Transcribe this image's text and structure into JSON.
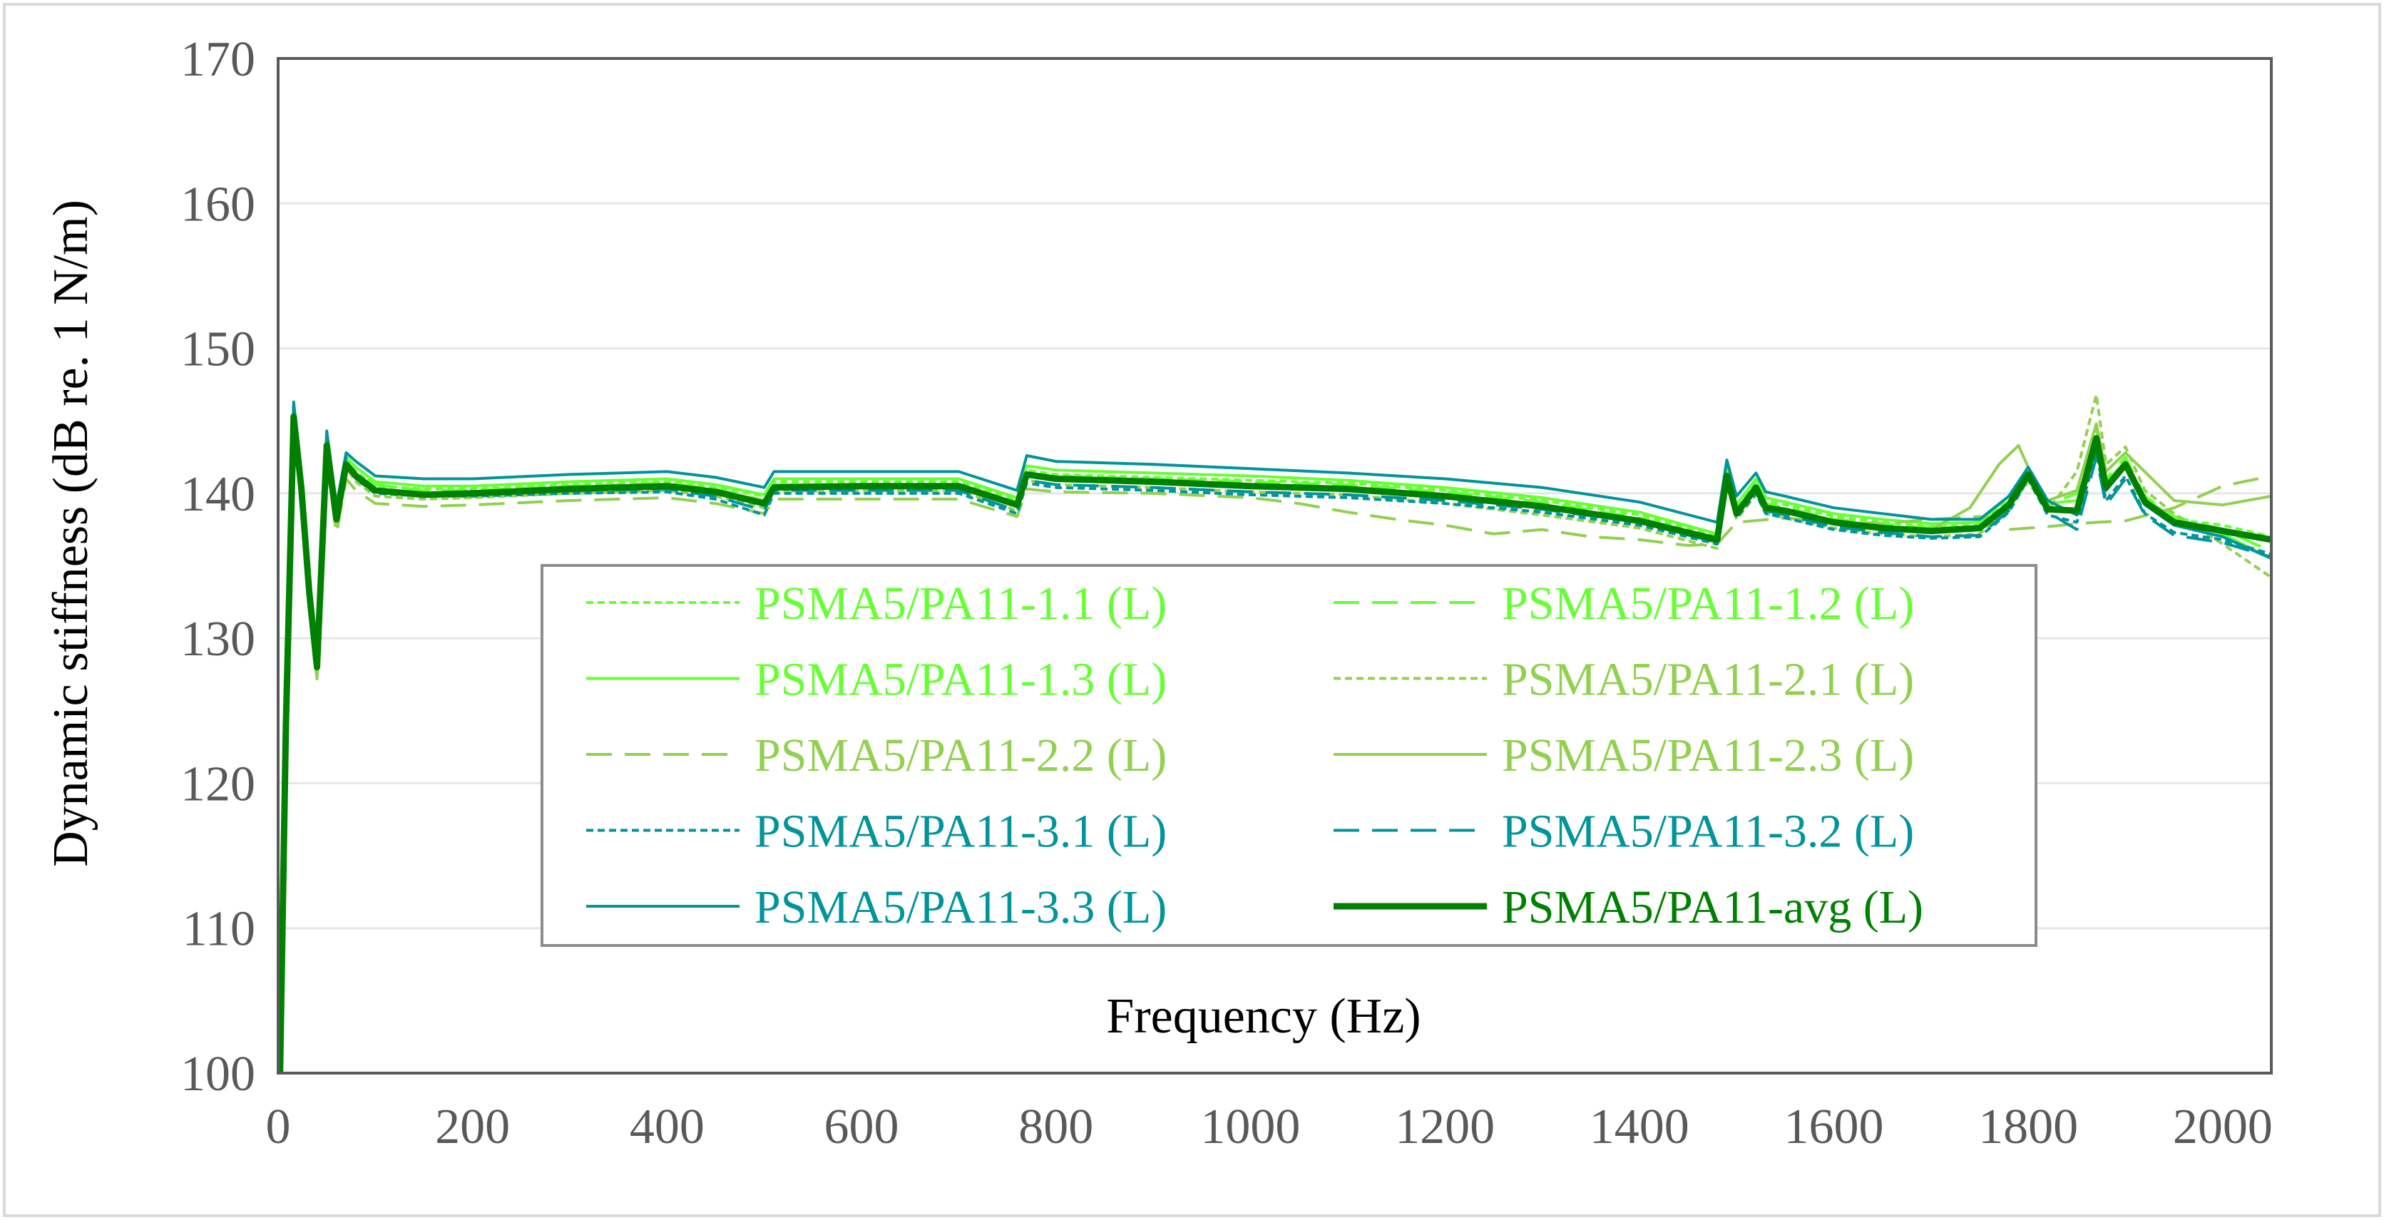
{
  "chart_data": {
    "type": "line",
    "title": "",
    "xlabel": "Frequency (Hz)",
    "ylabel": "Dynamic stiffness  (dB re. 1 N/m)",
    "xlim": [
      0,
      2050
    ],
    "ylim": [
      100,
      170
    ],
    "xticks": [
      0,
      200,
      400,
      600,
      800,
      1000,
      1200,
      1400,
      1600,
      1800,
      2000
    ],
    "yticks": [
      100,
      110,
      120,
      130,
      140,
      150,
      160,
      170
    ],
    "xtick_labels": [
      "0",
      "200",
      "400",
      "600",
      "800",
      "1000",
      "1200",
      "1400",
      "1600",
      "1800",
      "2000"
    ],
    "ytick_labels": [
      "100",
      "110",
      "120",
      "130",
      "140",
      "150",
      "160",
      "170"
    ],
    "grid": "horizontal",
    "legend_position": "center",
    "series": [
      {
        "name": "PSMA5/PA11-1.1 (L)",
        "color": "#66ff33",
        "dash": "short-dash",
        "x": [
          2,
          8,
          16,
          24,
          32,
          40,
          50,
          60,
          70,
          80,
          100,
          150,
          200,
          300,
          400,
          450,
          500,
          510,
          600,
          700,
          760,
          770,
          800,
          900,
          1000,
          1100,
          1200,
          1300,
          1400,
          1480,
          1490,
          1500,
          1520,
          1530,
          1550,
          1600,
          1650,
          1700,
          1750,
          1780,
          1800,
          1820,
          1850,
          1870,
          1880,
          1900,
          1920,
          1950,
          2000,
          2050
        ],
        "y": [
          100,
          124,
          145,
          140,
          133,
          128,
          143,
          138,
          142,
          141.5,
          140.5,
          140.3,
          140.3,
          140.6,
          140.8,
          140.4,
          139.8,
          140.8,
          140.8,
          140.8,
          139.5,
          141.6,
          141.3,
          141.1,
          140.9,
          140.7,
          140.2,
          139.5,
          138.5,
          137,
          141.5,
          139,
          140.8,
          139.5,
          139.2,
          138.4,
          138.0,
          137.7,
          137.8,
          139.5,
          141.2,
          139,
          138.8,
          143,
          140.5,
          142,
          139.5,
          138.2,
          137.8,
          137
        ]
      },
      {
        "name": "PSMA5/PA11-1.2 (L)",
        "color": "#66ff33",
        "dash": "long-dash",
        "x": [
          2,
          8,
          16,
          24,
          32,
          40,
          50,
          60,
          70,
          80,
          100,
          150,
          200,
          300,
          400,
          450,
          500,
          510,
          600,
          700,
          760,
          770,
          800,
          900,
          1000,
          1100,
          1200,
          1300,
          1400,
          1480,
          1490,
          1500,
          1520,
          1530,
          1550,
          1600,
          1650,
          1700,
          1750,
          1780,
          1800,
          1820,
          1850,
          1870,
          1880,
          1900,
          1920,
          1950,
          2000,
          2050
        ],
        "y": [
          100,
          123,
          145.5,
          140.5,
          133.5,
          128,
          143.5,
          138,
          142.2,
          141.5,
          140.6,
          140.2,
          140.2,
          140.5,
          140.7,
          140.3,
          139.5,
          140.6,
          140.6,
          140.6,
          139.4,
          141.4,
          141.2,
          141.0,
          140.8,
          140.6,
          140.1,
          139.4,
          138.3,
          136.8,
          141.4,
          138.8,
          140.6,
          139.3,
          139.0,
          138.2,
          137.9,
          137.6,
          137.7,
          139.2,
          141.0,
          139.2,
          140,
          144.5,
          141,
          142.5,
          139.8,
          138.4,
          137.5,
          136
        ]
      },
      {
        "name": "PSMA5/PA11-1.3 (L)",
        "color": "#66ff33",
        "dash": "solid",
        "x": [
          2,
          8,
          16,
          24,
          32,
          40,
          50,
          60,
          70,
          80,
          100,
          150,
          200,
          300,
          400,
          450,
          500,
          510,
          600,
          700,
          760,
          770,
          800,
          900,
          1000,
          1100,
          1200,
          1300,
          1400,
          1480,
          1490,
          1500,
          1520,
          1530,
          1550,
          1600,
          1650,
          1700,
          1750,
          1780,
          1800,
          1820,
          1850,
          1870,
          1880,
          1900,
          1920,
          1950,
          2000,
          2050
        ],
        "y": [
          100,
          124,
          146,
          140.5,
          133,
          127.8,
          143.8,
          138.2,
          142.5,
          141.8,
          140.8,
          140.5,
          140.5,
          140.8,
          141.0,
          140.6,
          139.9,
          141.0,
          141.0,
          141.0,
          139.7,
          141.9,
          141.6,
          141.4,
          141.2,
          140.9,
          140.4,
          139.7,
          138.7,
          137.2,
          141.8,
          139.2,
          141.0,
          139.7,
          139.4,
          138.6,
          138.2,
          137.9,
          138.0,
          139.8,
          141.5,
          139.3,
          139.5,
          143.5,
          140.8,
          142.2,
          139.6,
          138.3,
          137.2,
          135.5
        ]
      },
      {
        "name": "PSMA5/PA11-2.1 (L)",
        "color": "#92d050",
        "dash": "short-dash",
        "x": [
          2,
          8,
          16,
          24,
          32,
          40,
          50,
          60,
          70,
          80,
          100,
          150,
          200,
          300,
          400,
          450,
          500,
          510,
          600,
          700,
          760,
          770,
          800,
          900,
          1000,
          1100,
          1200,
          1300,
          1400,
          1480,
          1490,
          1500,
          1520,
          1530,
          1550,
          1600,
          1650,
          1700,
          1750,
          1780,
          1800,
          1820,
          1850,
          1870,
          1880,
          1900,
          1920,
          1950,
          2000,
          2050
        ],
        "y": [
          100,
          123,
          145,
          139.8,
          132.5,
          127.5,
          142.8,
          137.8,
          141.8,
          140.8,
          139.8,
          139.6,
          139.7,
          140.0,
          140.2,
          139.8,
          139.0,
          140.2,
          140.2,
          140.2,
          138.8,
          140.9,
          140.6,
          140.4,
          140.1,
          139.9,
          139.3,
          138.5,
          137.6,
          136.2,
          140.7,
          138.2,
          139.9,
          138.6,
          138.3,
          137.6,
          137.2,
          137.0,
          137.2,
          139.0,
          140.8,
          138.8,
          141.5,
          146.8,
          142,
          143.2,
          140.2,
          138.6,
          136.5,
          134.2
        ]
      },
      {
        "name": "PSMA5/PA11-2.2 (L)",
        "color": "#92d050",
        "dash": "long-dash",
        "x": [
          2,
          8,
          16,
          24,
          32,
          40,
          50,
          60,
          70,
          80,
          100,
          150,
          200,
          300,
          400,
          450,
          500,
          510,
          600,
          700,
          760,
          770,
          800,
          900,
          1000,
          1050,
          1100,
          1150,
          1200,
          1250,
          1300,
          1350,
          1400,
          1450,
          1480,
          1500,
          1550,
          1600,
          1650,
          1700,
          1750,
          1780,
          1800,
          1820,
          1850,
          1870,
          1900,
          1950,
          2000,
          2050
        ],
        "y": [
          100,
          122,
          144.5,
          139,
          132,
          127.2,
          142.2,
          137.2,
          141,
          140.2,
          139.3,
          139.1,
          139.2,
          139.5,
          139.7,
          139.3,
          138.6,
          139.6,
          139.6,
          139.6,
          138.4,
          140.3,
          140.1,
          140.0,
          139.7,
          139.3,
          138.7,
          138.2,
          137.8,
          137.2,
          137.5,
          137.0,
          136.8,
          136.4,
          136.5,
          138.0,
          138.3,
          138.0,
          137.9,
          138.2,
          138.4,
          137.5,
          137.6,
          137.7,
          137.9,
          138.0,
          138.1,
          139.0,
          140.5,
          141.2
        ]
      },
      {
        "name": "PSMA5/PA11-2.3 (L)",
        "color": "#92d050",
        "dash": "solid",
        "x": [
          2,
          8,
          16,
          24,
          32,
          40,
          50,
          60,
          70,
          80,
          100,
          150,
          200,
          300,
          400,
          450,
          500,
          510,
          600,
          700,
          760,
          770,
          800,
          900,
          1000,
          1100,
          1200,
          1300,
          1400,
          1480,
          1490,
          1500,
          1520,
          1530,
          1550,
          1600,
          1650,
          1700,
          1740,
          1770,
          1790,
          1800,
          1820,
          1850,
          1870,
          1880,
          1900,
          1950,
          2000,
          2050
        ],
        "y": [
          100,
          123,
          145,
          140,
          133,
          128,
          143,
          138,
          142,
          141.2,
          140.2,
          140.0,
          140.1,
          140.4,
          140.6,
          140.2,
          139.5,
          140.6,
          140.6,
          140.6,
          139.2,
          141.3,
          141.0,
          140.8,
          140.5,
          140.3,
          139.8,
          139.0,
          138.0,
          136.6,
          141.0,
          138.5,
          140.2,
          138.9,
          138.7,
          138.0,
          137.6,
          137.5,
          139.0,
          142.0,
          143.3,
          141.8,
          139.5,
          140.2,
          144.8,
          141.5,
          142.8,
          139.5,
          139.2,
          139.8
        ]
      },
      {
        "name": "PSMA5/PA11-3.1 (L)",
        "color": "#00949b",
        "dash": "short-dash",
        "x": [
          2,
          8,
          16,
          24,
          32,
          40,
          50,
          60,
          70,
          80,
          100,
          150,
          200,
          300,
          400,
          450,
          500,
          510,
          600,
          700,
          760,
          770,
          800,
          900,
          1000,
          1100,
          1200,
          1300,
          1400,
          1480,
          1490,
          1500,
          1520,
          1530,
          1550,
          1600,
          1650,
          1700,
          1750,
          1780,
          1800,
          1820,
          1850,
          1870,
          1880,
          1900,
          1920,
          1950,
          2000,
          2050
        ],
        "y": [
          100,
          124,
          145.5,
          140.2,
          133.5,
          128.5,
          143.5,
          138.5,
          142.2,
          141.0,
          140.0,
          139.8,
          139.8,
          140.0,
          140.1,
          139.6,
          138.5,
          140.0,
          140.0,
          140.0,
          138.6,
          140.7,
          140.4,
          140.2,
          139.9,
          139.7,
          139.3,
          138.7,
          137.8,
          136.5,
          141.0,
          138.3,
          140.0,
          138.6,
          138.3,
          137.5,
          137.1,
          136.9,
          137.0,
          138.7,
          141.0,
          138.5,
          138.0,
          142.8,
          139.5,
          141.2,
          138.6,
          137.3,
          136.8,
          135.8
        ]
      },
      {
        "name": "PSMA5/PA11-3.2 (L)",
        "color": "#00949b",
        "dash": "long-dash",
        "x": [
          2,
          8,
          16,
          24,
          32,
          40,
          50,
          60,
          70,
          80,
          100,
          150,
          200,
          300,
          400,
          450,
          500,
          510,
          600,
          700,
          760,
          770,
          800,
          900,
          1000,
          1100,
          1200,
          1300,
          1400,
          1480,
          1490,
          1500,
          1520,
          1530,
          1550,
          1600,
          1650,
          1700,
          1750,
          1780,
          1800,
          1820,
          1850,
          1870,
          1880,
          1900,
          1920,
          1950,
          2000,
          2050
        ],
        "y": [
          100,
          125,
          146,
          140.8,
          134,
          129,
          144,
          139,
          142.5,
          141.3,
          140.3,
          140.0,
          140.0,
          140.2,
          140.3,
          139.8,
          138.8,
          140.2,
          140.2,
          140.2,
          138.8,
          140.9,
          140.6,
          140.4,
          140.1,
          139.9,
          139.5,
          138.9,
          138.0,
          136.6,
          141.2,
          138.5,
          140.2,
          138.8,
          138.5,
          137.7,
          137.3,
          137.0,
          137.1,
          138.8,
          141.2,
          138.7,
          137.5,
          142.5,
          139.2,
          141.0,
          138.5,
          137.1,
          136.6,
          135.6
        ]
      },
      {
        "name": "PSMA5/PA11-3.3 (L)",
        "color": "#00949b",
        "dash": "solid",
        "x": [
          2,
          8,
          16,
          24,
          32,
          40,
          50,
          60,
          70,
          80,
          100,
          150,
          200,
          300,
          400,
          450,
          500,
          510,
          600,
          700,
          760,
          770,
          800,
          900,
          1000,
          1100,
          1200,
          1300,
          1400,
          1480,
          1490,
          1500,
          1520,
          1530,
          1550,
          1600,
          1650,
          1700,
          1750,
          1780,
          1800,
          1820,
          1850,
          1870,
          1880,
          1900,
          1920,
          1950,
          2000,
          2050
        ],
        "y": [
          100,
          125,
          146.3,
          141,
          134.2,
          129.2,
          144.3,
          139.2,
          142.8,
          142.2,
          141.2,
          141.0,
          141.0,
          141.3,
          141.5,
          141.1,
          140.4,
          141.5,
          141.5,
          141.5,
          140.2,
          142.6,
          142.2,
          142.0,
          141.7,
          141.4,
          141.0,
          140.4,
          139.4,
          138.0,
          142.3,
          139.8,
          141.4,
          140.1,
          139.8,
          139.0,
          138.6,
          138.2,
          138.2,
          139.8,
          141.8,
          139.5,
          138.5,
          143.5,
          140.2,
          141.8,
          139.2,
          137.8,
          137.0,
          135.5
        ]
      },
      {
        "name": "PSMA5/PA11-avg (L)",
        "color": "#008000",
        "dash": "solid",
        "width": "thick",
        "x": [
          2,
          8,
          16,
          24,
          32,
          40,
          50,
          60,
          70,
          80,
          100,
          150,
          200,
          300,
          400,
          450,
          500,
          510,
          600,
          700,
          760,
          770,
          800,
          900,
          1000,
          1100,
          1200,
          1300,
          1400,
          1480,
          1490,
          1500,
          1520,
          1530,
          1550,
          1600,
          1650,
          1700,
          1750,
          1780,
          1800,
          1820,
          1850,
          1870,
          1880,
          1900,
          1920,
          1950,
          2000,
          2050
        ],
        "y": [
          100,
          124,
          145.3,
          140.3,
          133.2,
          128,
          143.3,
          138.2,
          142,
          141.2,
          140.2,
          139.9,
          140.0,
          140.3,
          140.5,
          140.1,
          139.3,
          140.4,
          140.5,
          140.5,
          139.2,
          141.3,
          141.0,
          140.8,
          140.5,
          140.3,
          139.8,
          139.1,
          138.1,
          136.8,
          141.2,
          138.6,
          140.4,
          139.0,
          138.8,
          138.0,
          137.6,
          137.4,
          137.6,
          139.2,
          141.3,
          138.9,
          138.8,
          143.8,
          140.4,
          142.0,
          139.4,
          138.0,
          137.4,
          136.8
        ]
      }
    ]
  }
}
